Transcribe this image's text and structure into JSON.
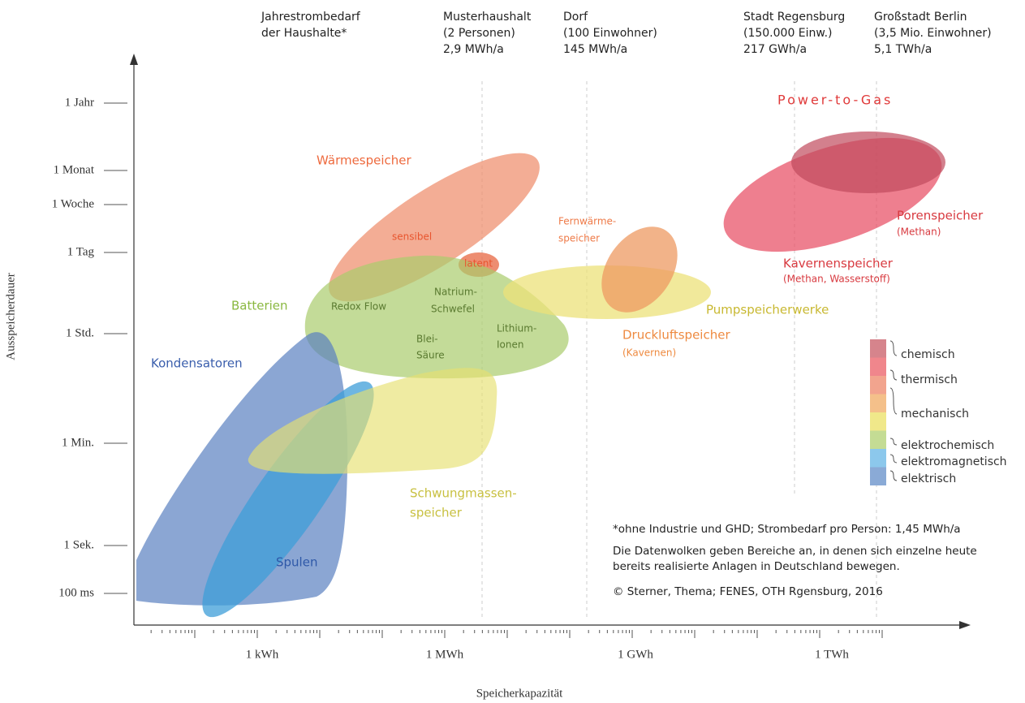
{
  "header": [
    {
      "lines": [
        "Jahrestrombedarf",
        "der Haushalte*"
      ]
    },
    {
      "lines": [
        "Musterhaushalt",
        "(2 Personen)",
        "2,9 MWh/a"
      ]
    },
    {
      "lines": [
        "Dorf",
        "(100 Einwohner)",
        "145 MWh/a"
      ]
    },
    {
      "lines": [
        "Stadt Regensburg",
        "(150.000 Einw.)",
        "217 GWh/a"
      ]
    },
    {
      "lines": [
        "Großstadt Berlin",
        "(3,5 Mio. Einwohner)",
        "5,1 TWh/a"
      ]
    }
  ],
  "y_axis": {
    "label": "Ausspeicherdauer",
    "ticks": [
      "1 Jahr",
      "1 Monat",
      "1 Woche",
      "1 Tag",
      "1 Std.",
      "1 Min.",
      "1 Sek.",
      "100 ms"
    ]
  },
  "x_axis": {
    "label": "Speicherkapazität",
    "ticks": [
      "1 kWh",
      "1 MWh",
      "1 GWh",
      "1 TWh"
    ]
  },
  "regions": [
    "Power-to-Gas",
    "Wärmespeicher",
    "sensibel",
    "latent",
    "Batterien",
    "Redox Flow",
    "Natrium-",
    "Schwefel",
    "Blei-",
    "Säure",
    "Lithium-",
    "Ionen",
    "Kondensatoren",
    "Spulen",
    "Schwungmassen-",
    "speicher",
    "Fernwärme-",
    "speicher",
    "Pumpspeicherwerke",
    "Druckluftspeicher",
    "(Kavernen)",
    "Porenspeicher",
    "(Methan)",
    "Kavernenspeicher",
    "(Methan, Wasserstoff)"
  ],
  "legend": [
    "chemisch",
    "thermisch",
    "mechanisch",
    "elektrochemisch",
    "elektromagnetisch",
    "elektrisch"
  ],
  "notes": [
    "*ohne Industrie und GHD; Strombedarf pro Person: 1,45 MWh/a",
    "Die Datenwolken geben Bereiche an, in denen sich einzelne heute",
    "bereits realisierte Anlagen in Deutschland bewegen.",
    "© Sterner, Thema; FENES, OTH Rgensburg, 2016"
  ]
}
